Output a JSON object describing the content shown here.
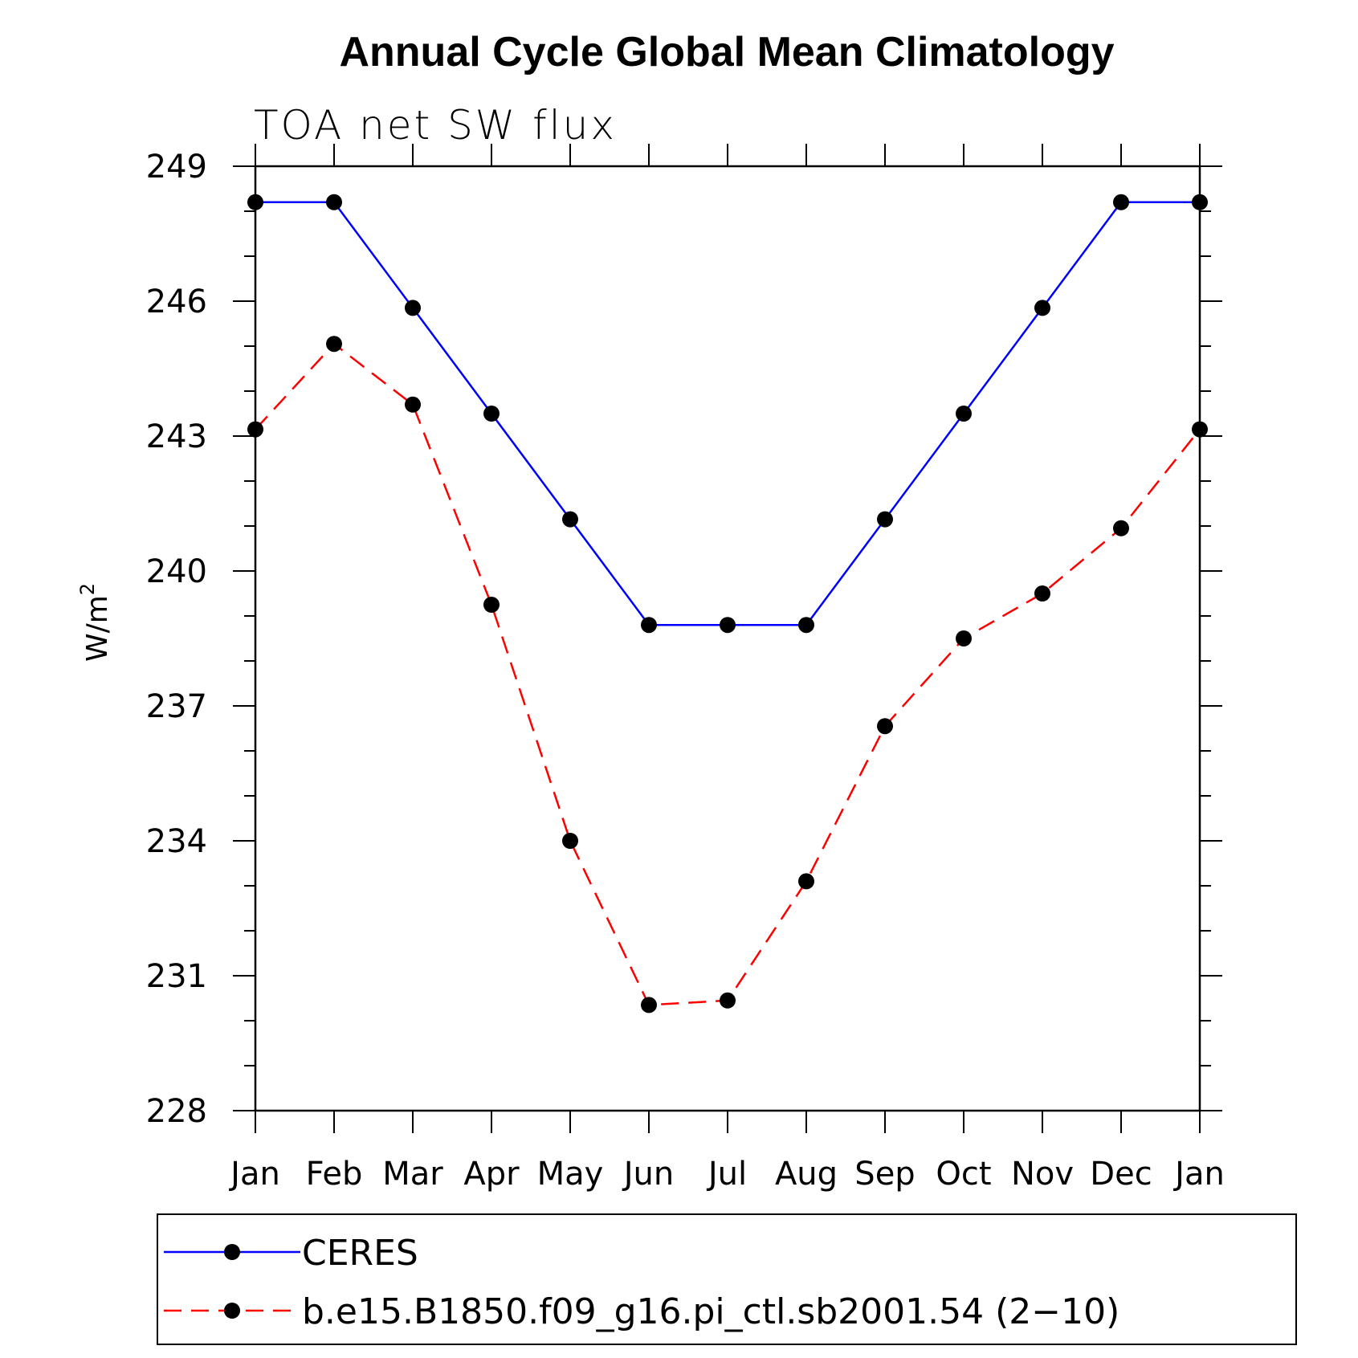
{
  "chart_data": {
    "type": "line",
    "title": "Annual Cycle Global Mean Climatology",
    "subtitle": "TOA net SW flux",
    "ylabel": "W/m",
    "ylabel_sup": "2",
    "xlabel": "",
    "categories": [
      "Jan",
      "Feb",
      "Mar",
      "Apr",
      "May",
      "Jun",
      "Jul",
      "Aug",
      "Sep",
      "Oct",
      "Nov",
      "Dec",
      "Jan"
    ],
    "ylim": [
      228,
      249
    ],
    "yticks": [
      228,
      231,
      234,
      237,
      240,
      243,
      246,
      249
    ],
    "yminor_step": 1,
    "legend_position": "bottom",
    "grid": false,
    "series": [
      {
        "name": "CERES",
        "color": "#0000ff",
        "dash": "solid",
        "values": [
          248.2,
          248.2,
          245.85,
          243.5,
          241.15,
          238.8,
          238.8,
          238.8,
          241.15,
          243.5,
          245.85,
          248.2,
          248.2
        ]
      },
      {
        "name": "b.e15.B1850.f09_g16.pi_ctl.sb2001.54 (2−10)",
        "color": "#ff0000",
        "dash": "dashed",
        "values": [
          243.15,
          245.05,
          243.7,
          239.25,
          234.0,
          230.35,
          230.45,
          233.1,
          236.55,
          238.5,
          239.5,
          240.95,
          243.15
        ]
      }
    ]
  }
}
